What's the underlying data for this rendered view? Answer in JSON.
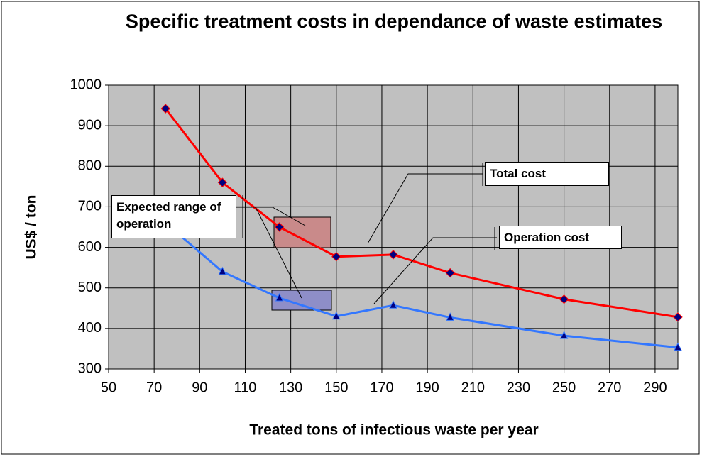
{
  "chart_data": {
    "type": "line",
    "title": "Specific treatment costs in dependance of waste estimates",
    "x_label": "Treated tons of infectious waste per year",
    "y_label": "US$ / ton",
    "x": [
      75,
      100,
      125,
      150,
      175,
      200,
      250,
      300
    ],
    "series": [
      {
        "name": "Total cost",
        "color": "#ff0000",
        "marker_color": "#000080",
        "marker": "diamond",
        "values": [
          942,
          760,
          650,
          577,
          582,
          537,
          472,
          428
        ]
      },
      {
        "name": "Operation cost",
        "color": "#3377ff",
        "marker_color": "#000080",
        "marker": "triangle",
        "values": [
          660,
          540,
          475,
          430,
          457,
          427,
          382,
          353
        ]
      }
    ],
    "annotations": [
      "Expected range of operation"
    ],
    "xlim": [
      50,
      300
    ],
    "xticks": [
      50,
      70,
      90,
      110,
      130,
      150,
      170,
      190,
      210,
      230,
      250,
      270,
      290
    ],
    "ylim": [
      300,
      1000
    ],
    "yticks": [
      300,
      400,
      500,
      600,
      700,
      800,
      900,
      1000
    ],
    "grid": true
  }
}
